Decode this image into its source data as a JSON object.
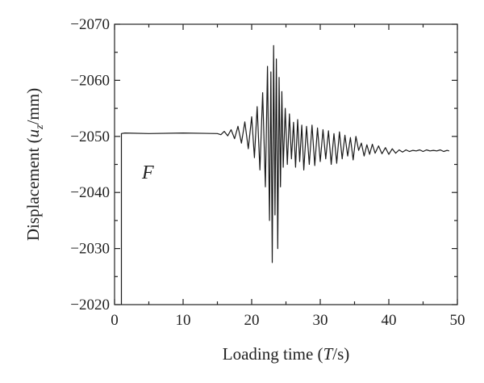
{
  "chart_data": {
    "type": "line",
    "title": "",
    "xlabel": "Loading time (T/s)",
    "xlabel_parts": {
      "pre": "Loading time (",
      "var": "T",
      "post": "/s)"
    },
    "ylabel": "Displacement (u_z/mm)",
    "ylabel_parts": {
      "pre": "Displacement (",
      "var": "u",
      "sub": "z",
      "post": "/mm)"
    },
    "xlim": [
      0,
      50
    ],
    "ylim": [
      -2020,
      -2070
    ],
    "y_axis_inverted": true,
    "xticks": [
      0,
      10,
      20,
      30,
      40,
      50
    ],
    "yticks": [
      -2020,
      -2030,
      -2040,
      -2050,
      -2060,
      -2070
    ],
    "xtick_labels": [
      "0",
      "10",
      "20",
      "30",
      "40",
      "50"
    ],
    "ytick_labels": [
      "−2020",
      "−2030",
      "−2040",
      "−2050",
      "−2060",
      "−2070"
    ],
    "grid": false,
    "legend": "none",
    "annotations": [
      {
        "text": "F",
        "x": 4,
        "y": -2042.5
      }
    ],
    "series": [
      {
        "x": [
          1.0,
          1.0,
          1.5,
          5.0,
          10.0,
          15.0,
          15.5,
          16.0,
          16.5,
          17.0,
          17.5,
          18.0,
          18.5,
          19.0,
          19.5,
          20.0,
          20.4,
          20.8,
          21.2,
          21.6,
          22.0,
          22.3,
          22.6,
          22.8,
          23.0,
          23.2,
          23.4,
          23.6,
          23.8,
          24.0,
          24.2,
          24.4,
          24.6,
          24.9,
          25.2,
          25.5,
          25.8,
          26.1,
          26.4,
          26.7,
          27.0,
          27.3,
          27.6,
          28.0,
          28.4,
          28.8,
          29.2,
          29.6,
          30.0,
          30.4,
          30.8,
          31.2,
          31.6,
          32.0,
          32.4,
          32.8,
          33.2,
          33.6,
          34.0,
          34.4,
          34.8,
          35.2,
          35.6,
          36.0,
          36.4,
          36.8,
          37.2,
          37.6,
          38.0,
          38.5,
          39.0,
          39.5,
          40.0,
          40.5,
          41.0,
          41.5,
          42.0,
          42.5,
          43.0,
          43.5,
          44.0,
          44.5,
          45.0,
          45.5,
          46.0,
          46.5,
          47.0,
          47.5,
          48.0,
          48.5,
          48.8
        ],
        "y": [
          -2020,
          -2050.5,
          -2050.6,
          -2050.5,
          -2050.6,
          -2050.5,
          -2050.3,
          -2050.9,
          -2050.1,
          -2051.2,
          -2049.6,
          -2051.8,
          -2048.8,
          -2052.6,
          -2047.8,
          -2053.5,
          -2046.2,
          -2055.3,
          -2044.0,
          -2057.8,
          -2041.0,
          -2062.5,
          -2035.0,
          -2061.5,
          -2027.5,
          -2066.2,
          -2036.0,
          -2063.8,
          -2030.0,
          -2060.5,
          -2041.0,
          -2058.0,
          -2044.5,
          -2055.0,
          -2045.0,
          -2054.0,
          -2046.0,
          -2052.5,
          -2044.5,
          -2053.0,
          -2045.5,
          -2052.0,
          -2044.0,
          -2051.8,
          -2045.0,
          -2052.0,
          -2044.8,
          -2051.5,
          -2045.5,
          -2051.2,
          -2046.0,
          -2051.0,
          -2045.0,
          -2050.5,
          -2045.2,
          -2050.8,
          -2046.0,
          -2050.2,
          -2046.5,
          -2049.8,
          -2045.8,
          -2050.0,
          -2047.5,
          -2048.8,
          -2046.5,
          -2048.5,
          -2046.8,
          -2048.6,
          -2047.0,
          -2048.3,
          -2046.9,
          -2048.0,
          -2046.8,
          -2047.8,
          -2047.0,
          -2047.6,
          -2047.2,
          -2047.6,
          -2047.3,
          -2047.5,
          -2047.4,
          -2047.6,
          -2047.3,
          -2047.6,
          -2047.4,
          -2047.5,
          -2047.4,
          -2047.6,
          -2047.3,
          -2047.5,
          -2047.4
        ]
      }
    ]
  }
}
